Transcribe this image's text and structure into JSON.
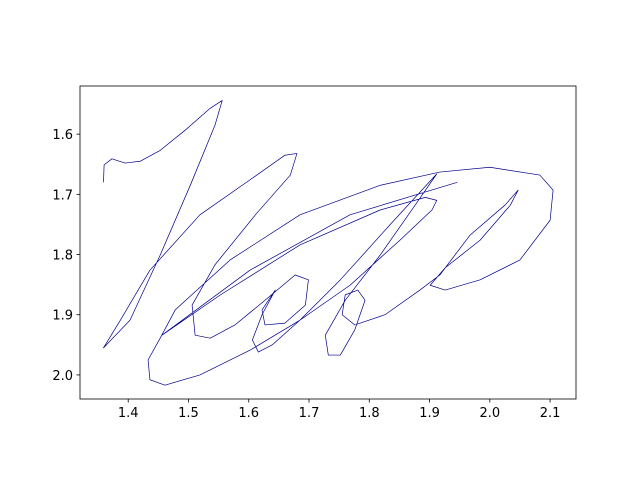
{
  "chart_data": {
    "type": "line",
    "series": [
      {
        "color": "#00008b",
        "x": [
          1.359,
          1.36,
          1.373,
          1.395,
          1.42,
          1.453,
          1.495,
          1.536,
          1.556,
          1.544,
          1.503,
          1.453,
          1.403,
          1.359,
          1.387,
          1.436,
          1.519,
          1.602,
          1.66,
          1.68,
          1.669,
          1.611,
          1.544,
          1.506,
          1.511,
          1.536,
          1.577,
          1.627,
          1.677,
          1.699,
          1.694,
          1.66,
          1.627,
          1.622,
          1.644,
          1.622,
          1.606,
          1.616,
          1.639,
          1.685,
          1.752,
          1.834,
          1.912,
          1.876,
          1.818,
          1.76,
          1.727,
          1.732,
          1.752,
          1.776,
          1.793,
          1.781,
          1.76,
          1.755,
          1.776,
          1.826,
          1.884,
          1.917,
          1.967,
          2.025,
          2.047,
          2.034,
          1.984,
          1.926,
          1.901,
          1.926,
          1.984,
          2.05,
          2.1,
          2.105,
          2.083,
          2.0,
          1.917,
          1.818,
          1.685,
          1.569,
          1.478,
          1.453,
          1.433,
          1.436,
          1.461,
          1.519,
          1.602,
          1.685,
          1.768,
          1.851,
          1.904,
          1.912,
          1.893,
          1.818,
          1.685,
          1.553,
          1.456,
          1.602,
          1.768,
          1.946
        ],
        "values": [
          1.68,
          1.651,
          1.641,
          1.648,
          1.645,
          1.627,
          1.593,
          1.557,
          1.544,
          1.585,
          1.685,
          1.801,
          1.909,
          1.955,
          1.909,
          1.826,
          1.734,
          1.676,
          1.635,
          1.632,
          1.668,
          1.734,
          1.817,
          1.884,
          1.934,
          1.939,
          1.917,
          1.876,
          1.834,
          1.842,
          1.884,
          1.914,
          1.917,
          1.892,
          1.859,
          1.9,
          1.942,
          1.962,
          1.95,
          1.909,
          1.842,
          1.751,
          1.666,
          1.718,
          1.801,
          1.876,
          1.934,
          1.967,
          1.967,
          1.925,
          1.876,
          1.859,
          1.867,
          1.9,
          1.917,
          1.9,
          1.859,
          1.834,
          1.768,
          1.718,
          1.693,
          1.718,
          1.776,
          1.822,
          1.851,
          1.859,
          1.842,
          1.809,
          1.743,
          1.693,
          1.668,
          1.655,
          1.663,
          1.685,
          1.734,
          1.809,
          1.892,
          1.939,
          1.975,
          2.008,
          2.017,
          2.0,
          1.959,
          1.909,
          1.851,
          1.776,
          1.726,
          1.71,
          1.705,
          1.726,
          1.784,
          1.867,
          1.934,
          1.826,
          1.734,
          1.68
        ]
      }
    ],
    "xlim": [
      1.32,
      2.143
    ],
    "xticks": [
      1.4,
      1.5,
      1.6,
      1.7,
      1.8,
      1.9,
      {
        "value": 2,
        "label": "2.0"
      },
      2.1
    ],
    "ylim": [
      2.04,
      1.52
    ],
    "yticks": [
      1.6,
      1.7,
      1.8,
      1.9,
      {
        "value": 2,
        "label": "2.0"
      }
    ]
  }
}
